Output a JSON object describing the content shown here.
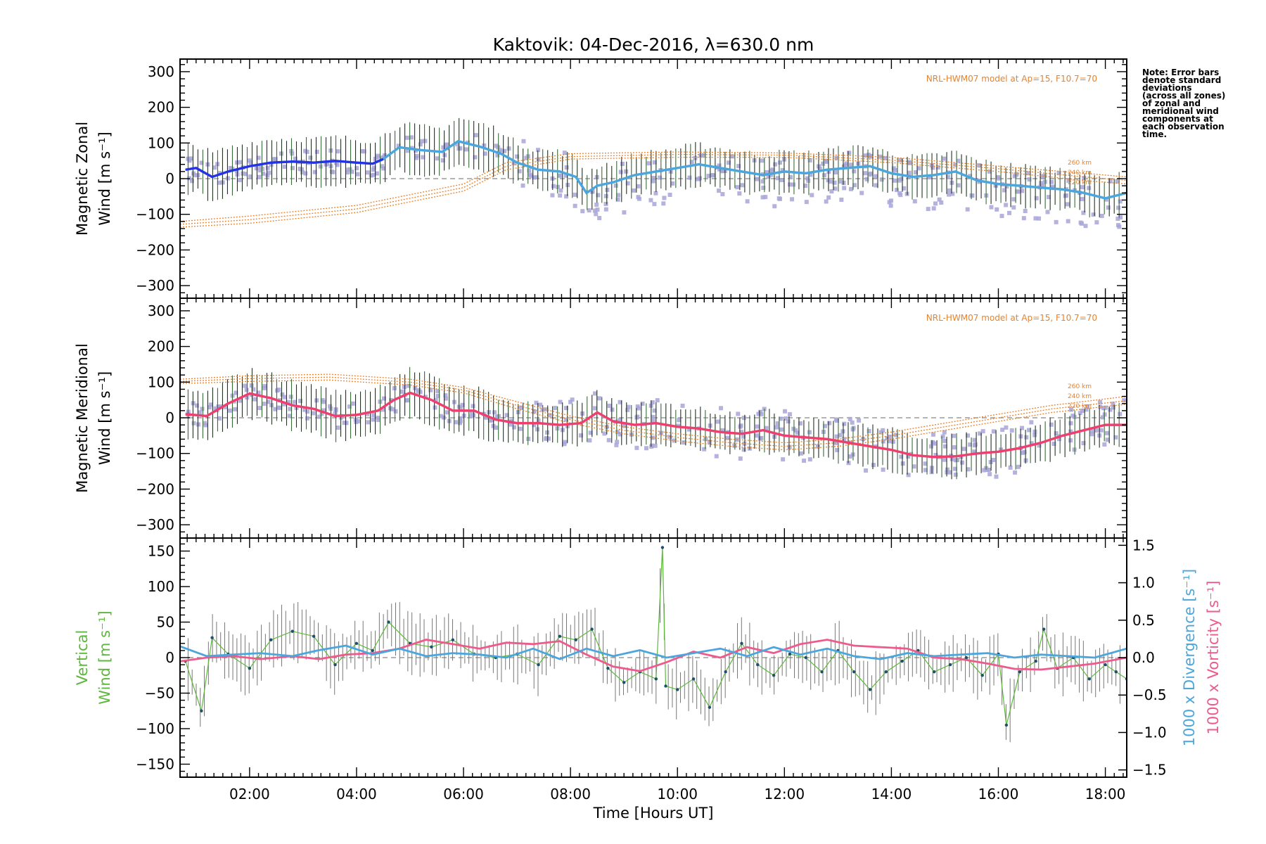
{
  "title": "Kaktovik: 04-Dec-2016, λ=630.0 nm",
  "note_lines": [
    "Note: Error bars",
    "denote standard",
    "deviations",
    "(across all zones)",
    "of zonal and",
    "meridional wind",
    "components at",
    "each observation",
    "time."
  ],
  "model_label": "NRL-HWM07 model at Ap=15, F10.7=70",
  "altitude_labels": [
    "260 km",
    "240 km",
    "220 km"
  ],
  "xlabel": "Time [Hours UT]",
  "x_ticks": [
    "02:00",
    "04:00",
    "06:00",
    "08:00",
    "10:00",
    "12:00",
    "14:00",
    "16:00",
    "18:00"
  ],
  "colors": {
    "zonal": "#2333e6",
    "zonal_late": "#4aa6dc",
    "meridional": "#ee3f6e",
    "vertical": "#5cb83a",
    "divergence": "#4aa6dc",
    "vorticity": "#ee5a8c",
    "model": "#e8822a",
    "scatter": "#a8a6d8",
    "errorbar": "#223322"
  },
  "chart_data": [
    {
      "type": "line",
      "title": "Kaktovik: 04-Dec-2016, λ=630.0 nm",
      "ylabel_lines": [
        "Magnetic Zonal",
        "Wind [m s⁻¹]"
      ],
      "xlim": [
        0.7,
        18.4
      ],
      "ylim": [
        -330,
        330
      ],
      "y_ticks": [
        "300",
        "200",
        "100",
        "0",
        "−100",
        "−200",
        "−300"
      ],
      "grid": false,
      "series": [
        {
          "name": "Magnetic Zonal Wind",
          "x": [
            0.8,
            1.0,
            1.3,
            1.6,
            2.0,
            2.4,
            2.8,
            3.2,
            3.6,
            4.0,
            4.3,
            4.5,
            4.8,
            5.2,
            5.6,
            5.9,
            6.3,
            6.7,
            7.0,
            7.4,
            7.8,
            8.1,
            8.3,
            8.5,
            8.8,
            9.2,
            9.6,
            10.0,
            10.4,
            10.8,
            11.2,
            11.6,
            12.0,
            12.4,
            12.8,
            13.2,
            13.6,
            14.0,
            14.4,
            14.8,
            15.2,
            15.6,
            16.0,
            16.4,
            16.8,
            17.2,
            17.6,
            18.0,
            18.4
          ],
          "y": [
            25,
            30,
            5,
            20,
            35,
            45,
            48,
            45,
            50,
            45,
            42,
            55,
            88,
            80,
            75,
            105,
            90,
            70,
            45,
            25,
            20,
            5,
            -40,
            -20,
            -10,
            10,
            20,
            30,
            40,
            30,
            20,
            10,
            20,
            15,
            25,
            30,
            35,
            15,
            5,
            10,
            20,
            -5,
            -15,
            -20,
            -25,
            -30,
            -40,
            -55,
            -40
          ]
        },
        {
          "name": "NRL-HWM07 260 km",
          "x": [
            0.7,
            2,
            4,
            6,
            6.8,
            8,
            10,
            12,
            14,
            16,
            17.6,
            18.4
          ],
          "y": [
            -120,
            -105,
            -75,
            -15,
            45,
            70,
            75,
            72,
            60,
            35,
            15,
            5
          ]
        },
        {
          "name": "NRL-HWM07 240 km",
          "x": [
            0.7,
            2,
            4,
            6,
            6.8,
            8,
            10,
            12,
            14,
            16,
            17.6,
            18.4
          ],
          "y": [
            -128,
            -115,
            -85,
            -25,
            35,
            62,
            68,
            66,
            52,
            28,
            5,
            -5
          ]
        },
        {
          "name": "NRL-HWM07 220 km",
          "x": [
            0.7,
            2,
            4,
            6,
            6.8,
            8,
            10,
            12,
            14,
            16,
            17.6,
            18.4
          ],
          "y": [
            -136,
            -125,
            -95,
            -35,
            25,
            55,
            60,
            60,
            45,
            20,
            -5,
            -15
          ]
        }
      ]
    },
    {
      "type": "line",
      "ylabel_lines": [
        "Magnetic Meridional",
        "Wind [m s⁻¹]"
      ],
      "xlim": [
        0.7,
        18.4
      ],
      "ylim": [
        -330,
        330
      ],
      "y_ticks": [
        "300",
        "200",
        "100",
        "0",
        "−100",
        "−200",
        "−300"
      ],
      "grid": false,
      "series": [
        {
          "name": "Magnetic Meridional Wind",
          "x": [
            0.8,
            1.2,
            1.6,
            2.0,
            2.4,
            2.8,
            3.2,
            3.6,
            4.0,
            4.4,
            4.7,
            5.0,
            5.4,
            5.8,
            6.2,
            6.6,
            7.0,
            7.4,
            7.8,
            8.2,
            8.5,
            8.8,
            9.2,
            9.6,
            10.0,
            10.4,
            10.8,
            11.2,
            11.6,
            12.0,
            12.4,
            12.8,
            13.2,
            13.6,
            14.0,
            14.4,
            14.8,
            15.2,
            15.6,
            16.0,
            16.4,
            16.8,
            17.2,
            17.6,
            18.0,
            18.4
          ],
          "y": [
            10,
            5,
            40,
            68,
            55,
            35,
            25,
            5,
            8,
            20,
            50,
            70,
            50,
            20,
            20,
            -5,
            -15,
            -15,
            -20,
            -15,
            15,
            -10,
            -20,
            -15,
            -25,
            -30,
            -40,
            -45,
            -35,
            -50,
            -55,
            -60,
            -70,
            -80,
            -90,
            -105,
            -110,
            -108,
            -100,
            -95,
            -85,
            -70,
            -50,
            -35,
            -20,
            -20
          ]
        },
        {
          "name": "NRL-HWM07 260 km",
          "x": [
            0.7,
            2,
            3.5,
            5,
            6,
            7,
            8,
            9,
            10,
            11,
            12,
            13,
            14,
            15,
            16,
            17,
            18.4
          ],
          "y": [
            108,
            118,
            122,
            108,
            85,
            45,
            5,
            -25,
            -45,
            -60,
            -70,
            -60,
            -40,
            -15,
            10,
            35,
            60
          ]
        },
        {
          "name": "NRL-HWM07 240 km",
          "x": [
            0.7,
            2,
            3.5,
            5,
            6,
            7,
            8,
            9,
            10,
            11,
            12,
            13,
            14,
            15,
            16,
            17,
            18.4
          ],
          "y": [
            102,
            110,
            114,
            100,
            78,
            35,
            -5,
            -35,
            -55,
            -70,
            -80,
            -70,
            -50,
            -25,
            0,
            25,
            48
          ]
        },
        {
          "name": "NRL-HWM07 220 km",
          "x": [
            0.7,
            2,
            3.5,
            5,
            6,
            7,
            8,
            9,
            10,
            11,
            12,
            13,
            14,
            15,
            16,
            17,
            18.4
          ],
          "y": [
            96,
            102,
            106,
            92,
            70,
            25,
            -15,
            -45,
            -65,
            -80,
            -90,
            -80,
            -60,
            -35,
            -10,
            15,
            38
          ]
        }
      ]
    },
    {
      "type": "line",
      "ylabel_lines": [
        "Vertical",
        "Wind [m s⁻¹]"
      ],
      "xlabel": "Time [Hours UT]",
      "xlim": [
        0.7,
        18.4
      ],
      "ylim": [
        -165,
        165
      ],
      "y_ticks": [
        "150",
        "100",
        "50",
        "0",
        "−50",
        "−100",
        "−150"
      ],
      "y2label_lines": [
        "1000 x Divergence [s⁻¹]",
        "1000 x Vorticity [s⁻¹]"
      ],
      "y2lim": [
        -1.55,
        1.55
      ],
      "y2_ticks": [
        "1.5",
        "1.0",
        "0.5",
        "0.0",
        "−0.5",
        "−1.0",
        "−1.5"
      ],
      "grid": false,
      "series": [
        {
          "name": "Vertical Wind",
          "x": [
            0.8,
            1.1,
            1.3,
            1.6,
            2.0,
            2.4,
            2.8,
            3.2,
            3.6,
            4.0,
            4.3,
            4.6,
            5.0,
            5.4,
            5.8,
            6.2,
            6.6,
            7.0,
            7.4,
            7.8,
            8.1,
            8.4,
            8.7,
            9.0,
            9.3,
            9.6,
            9.72,
            9.78,
            10.0,
            10.3,
            10.6,
            10.9,
            11.2,
            11.5,
            11.8,
            12.1,
            12.4,
            12.7,
            13.0,
            13.3,
            13.6,
            13.9,
            14.2,
            14.5,
            14.8,
            15.1,
            15.4,
            15.7,
            16.0,
            16.15,
            16.4,
            16.7,
            16.85,
            17.1,
            17.4,
            17.7,
            18.0,
            18.2,
            18.4
          ],
          "y": [
            -5,
            -75,
            28,
            5,
            -15,
            25,
            37,
            30,
            -10,
            20,
            10,
            50,
            20,
            15,
            25,
            5,
            0,
            5,
            -10,
            30,
            25,
            40,
            -15,
            -35,
            -20,
            -30,
            155,
            -40,
            -45,
            -30,
            -70,
            -20,
            20,
            -10,
            -25,
            5,
            0,
            -20,
            10,
            -20,
            -45,
            -20,
            -5,
            10,
            -20,
            -10,
            0,
            -25,
            5,
            -95,
            -20,
            -5,
            40,
            -15,
            0,
            -30,
            -10,
            -20,
            -30
          ]
        },
        {
          "name": "1000 x Divergence",
          "x": [
            0.7,
            1.2,
            1.7,
            2.2,
            2.8,
            3.3,
            3.8,
            4.3,
            4.8,
            5.3,
            5.8,
            6.3,
            6.8,
            7.3,
            7.8,
            8.3,
            8.8,
            9.3,
            9.8,
            10.3,
            10.8,
            11.3,
            11.8,
            12.3,
            12.8,
            13.3,
            13.8,
            14.3,
            14.8,
            15.3,
            15.8,
            16.3,
            16.8,
            17.3,
            17.8,
            18.4
          ],
          "y": [
            0.15,
            0.02,
            0.04,
            0.06,
            0.02,
            0.1,
            0.16,
            0.04,
            0.12,
            0.02,
            0.06,
            0.04,
            0.0,
            0.12,
            -0.02,
            0.12,
            0.02,
            0.1,
            0.0,
            0.06,
            0.12,
            0.02,
            0.14,
            0.04,
            0.12,
            0.02,
            -0.02,
            0.06,
            0.02,
            0.04,
            0.06,
            0.0,
            0.04,
            0.02,
            0.0,
            0.12
          ]
        },
        {
          "name": "1000 x Vorticity",
          "x": [
            0.7,
            1.2,
            1.7,
            2.2,
            2.8,
            3.3,
            3.8,
            4.3,
            4.8,
            5.3,
            5.8,
            6.3,
            6.8,
            7.3,
            7.8,
            8.3,
            8.8,
            9.3,
            9.8,
            10.3,
            10.8,
            11.3,
            11.8,
            12.3,
            12.8,
            13.3,
            13.8,
            14.3,
            14.8,
            15.3,
            15.8,
            16.3,
            16.8,
            17.3,
            17.8,
            18.4
          ],
          "y": [
            -0.05,
            0.0,
            0.02,
            -0.02,
            0.02,
            -0.02,
            0.04,
            0.06,
            0.12,
            0.24,
            0.18,
            0.12,
            0.2,
            0.18,
            0.22,
            0.04,
            -0.12,
            -0.18,
            -0.06,
            0.08,
            0.0,
            0.14,
            0.06,
            0.18,
            0.24,
            0.16,
            0.14,
            0.12,
            0.0,
            -0.02,
            -0.08,
            -0.15,
            -0.16,
            -0.12,
            -0.08,
            0.0
          ]
        }
      ]
    }
  ]
}
